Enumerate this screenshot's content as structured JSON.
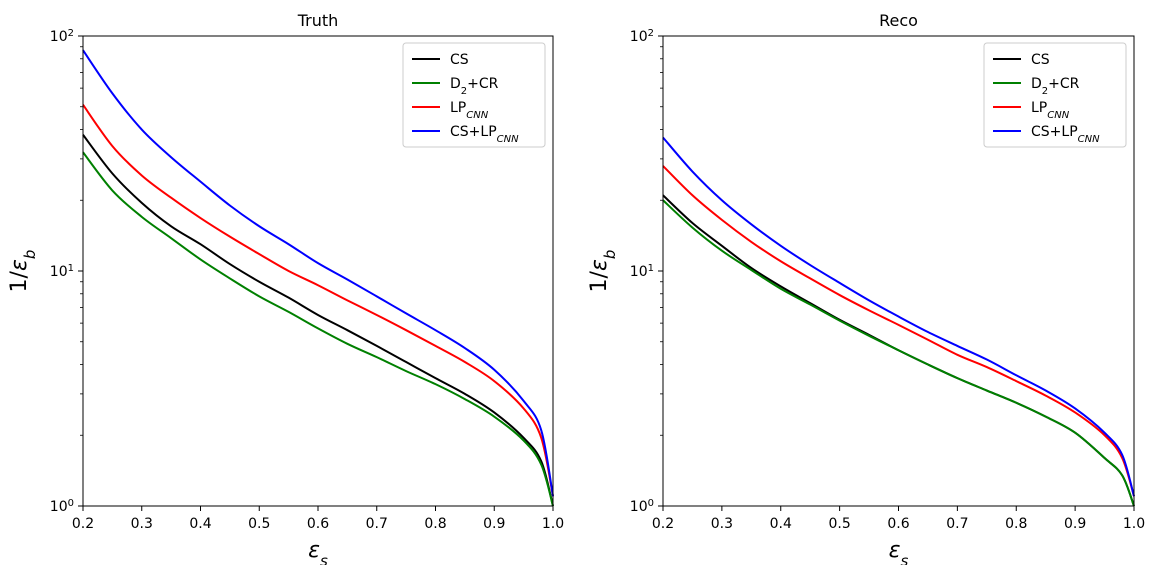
{
  "chart_data": [
    {
      "type": "line",
      "title": "Truth",
      "xlabel": "εs",
      "ylabel": "1/εb",
      "xlim": [
        0.2,
        1.0
      ],
      "ylim": [
        1,
        100
      ],
      "yscale": "log",
      "xticks": [
        "0.2",
        "0.3",
        "0.4",
        "0.5",
        "0.6",
        "0.7",
        "0.8",
        "0.9",
        "1.0"
      ],
      "yticks": [
        {
          "base": "10",
          "exp": "0"
        },
        {
          "base": "10",
          "exp": "1"
        },
        {
          "base": "10",
          "exp": "2"
        }
      ],
      "legend_position": "top-right",
      "series": [
        {
          "name": "CS",
          "name_parts": [
            "CS",
            "",
            ""
          ],
          "color": "#000000",
          "x": [
            0.2,
            0.25,
            0.3,
            0.35,
            0.4,
            0.45,
            0.5,
            0.55,
            0.6,
            0.65,
            0.7,
            0.75,
            0.8,
            0.85,
            0.9,
            0.95,
            0.98,
            1.0
          ],
          "y": [
            38,
            26,
            19.5,
            15.5,
            13,
            10.7,
            9.0,
            7.7,
            6.5,
            5.6,
            4.8,
            4.1,
            3.5,
            3.0,
            2.5,
            1.95,
            1.55,
            1.0
          ]
        },
        {
          "name": "D2+CR",
          "name_parts": [
            "D",
            "2",
            "+CR"
          ],
          "color": "#008000",
          "x": [
            0.2,
            0.25,
            0.3,
            0.35,
            0.4,
            0.45,
            0.5,
            0.55,
            0.6,
            0.65,
            0.7,
            0.75,
            0.8,
            0.85,
            0.9,
            0.95,
            0.98,
            1.0
          ],
          "y": [
            32,
            22,
            17,
            13.8,
            11.2,
            9.3,
            7.8,
            6.7,
            5.7,
            4.9,
            4.3,
            3.75,
            3.3,
            2.85,
            2.4,
            1.9,
            1.5,
            1.0
          ]
        },
        {
          "name": "LPCNN",
          "name_parts": [
            "LP",
            "CNN",
            ""
          ],
          "color": "#ff0000",
          "x": [
            0.2,
            0.25,
            0.3,
            0.35,
            0.4,
            0.45,
            0.5,
            0.55,
            0.6,
            0.65,
            0.7,
            0.75,
            0.8,
            0.85,
            0.9,
            0.95,
            0.98,
            1.0
          ],
          "y": [
            51,
            34,
            25.5,
            20.5,
            16.8,
            14,
            11.8,
            10,
            8.7,
            7.5,
            6.5,
            5.6,
            4.8,
            4.1,
            3.4,
            2.6,
            1.95,
            1.1
          ]
        },
        {
          "name": "CS+LPCNN",
          "name_parts": [
            "CS+LP",
            "CNN",
            ""
          ],
          "color": "#0000ff",
          "x": [
            0.2,
            0.25,
            0.3,
            0.35,
            0.4,
            0.45,
            0.5,
            0.55,
            0.6,
            0.65,
            0.7,
            0.75,
            0.8,
            0.85,
            0.9,
            0.95,
            0.98,
            1.0
          ],
          "y": [
            87,
            57,
            40,
            30.5,
            24,
            19,
            15.5,
            13,
            10.8,
            9.2,
            7.8,
            6.6,
            5.6,
            4.7,
            3.8,
            2.8,
            2.1,
            1.1
          ]
        }
      ]
    },
    {
      "type": "line",
      "title": "Reco",
      "xlabel": "εs",
      "ylabel": "1/εb",
      "xlim": [
        0.2,
        1.0
      ],
      "ylim": [
        1,
        100
      ],
      "yscale": "log",
      "xticks": [
        "0.2",
        "0.3",
        "0.4",
        "0.5",
        "0.6",
        "0.7",
        "0.8",
        "0.9",
        "1.0"
      ],
      "yticks": [
        {
          "base": "10",
          "exp": "0"
        },
        {
          "base": "10",
          "exp": "1"
        },
        {
          "base": "10",
          "exp": "2"
        }
      ],
      "legend_position": "top-right",
      "series": [
        {
          "name": "CS",
          "name_parts": [
            "CS",
            "",
            ""
          ],
          "color": "#000000",
          "x": [
            0.2,
            0.25,
            0.3,
            0.35,
            0.4,
            0.45,
            0.5,
            0.55,
            0.6,
            0.65,
            0.7,
            0.75,
            0.8,
            0.85,
            0.9,
            0.95,
            0.98,
            1.0
          ],
          "y": [
            21,
            16,
            12.8,
            10.3,
            8.6,
            7.3,
            6.2,
            5.35,
            4.6,
            4.0,
            3.5,
            3.1,
            2.75,
            2.4,
            2.05,
            1.6,
            1.35,
            1.0
          ]
        },
        {
          "name": "D2+CR",
          "name_parts": [
            "D",
            "2",
            "+CR"
          ],
          "color": "#008000",
          "x": [
            0.2,
            0.25,
            0.3,
            0.35,
            0.4,
            0.45,
            0.5,
            0.55,
            0.6,
            0.65,
            0.7,
            0.75,
            0.8,
            0.85,
            0.9,
            0.95,
            0.98,
            1.0
          ],
          "y": [
            20,
            15.3,
            12.2,
            10.1,
            8.4,
            7.2,
            6.15,
            5.3,
            4.6,
            4.0,
            3.5,
            3.1,
            2.75,
            2.4,
            2.05,
            1.6,
            1.35,
            1.0
          ]
        },
        {
          "name": "LPCNN",
          "name_parts": [
            "LP",
            "CNN",
            ""
          ],
          "color": "#ff0000",
          "x": [
            0.2,
            0.25,
            0.3,
            0.35,
            0.4,
            0.45,
            0.5,
            0.55,
            0.6,
            0.65,
            0.7,
            0.75,
            0.8,
            0.85,
            0.9,
            0.95,
            0.98,
            1.0
          ],
          "y": [
            28,
            21,
            16.5,
            13.3,
            11,
            9.3,
            7.9,
            6.8,
            5.9,
            5.1,
            4.4,
            3.9,
            3.4,
            2.95,
            2.5,
            2.0,
            1.6,
            1.1
          ]
        },
        {
          "name": "CS+LPCNN",
          "name_parts": [
            "CS+LP",
            "CNN",
            ""
          ],
          "color": "#0000ff",
          "x": [
            0.2,
            0.25,
            0.3,
            0.35,
            0.4,
            0.45,
            0.5,
            0.55,
            0.6,
            0.65,
            0.7,
            0.75,
            0.8,
            0.85,
            0.9,
            0.95,
            0.98,
            1.0
          ],
          "y": [
            37,
            26.5,
            20,
            15.8,
            12.8,
            10.6,
            8.9,
            7.5,
            6.4,
            5.5,
            4.8,
            4.2,
            3.6,
            3.1,
            2.6,
            2.05,
            1.65,
            1.1
          ]
        }
      ]
    }
  ]
}
